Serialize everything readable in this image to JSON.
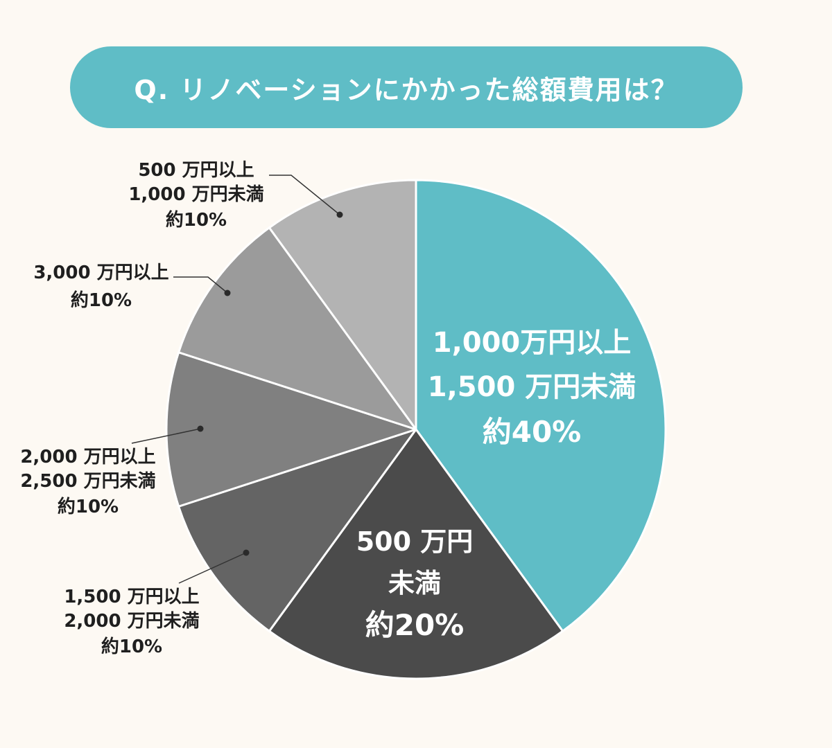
{
  "title": "Q. リノベーションにかかった総額費用は？",
  "chart_data": {
    "type": "pie",
    "title": "Q. リノベーションにかかった総額費用は？",
    "start_angle_deg": 0,
    "direction": "clockwise",
    "slices": [
      {
        "label_lines": [
          "1,000万円以上",
          "1,500 万円未満"
        ],
        "value": 40,
        "pct_text": "約40%",
        "color": "#5fbdc6",
        "label_mode": "inside"
      },
      {
        "label_lines": [
          "500 万円",
          "未満"
        ],
        "value": 20,
        "pct_text": "約20%",
        "color": "#4b4b4b",
        "label_mode": "inside"
      },
      {
        "label_lines": [
          "1,500 万円以上",
          "2,000 万円未満"
        ],
        "value": 10,
        "pct_text": "約10%",
        "color": "#646464",
        "label_mode": "outside"
      },
      {
        "label_lines": [
          "2,000 万円以上",
          "2,500 万円未満"
        ],
        "value": 10,
        "pct_text": "約10%",
        "color": "#808080",
        "label_mode": "outside"
      },
      {
        "label_lines": [
          "3,000 万円以上"
        ],
        "value": 10,
        "pct_text": "約10%",
        "color": "#9b9b9b",
        "label_mode": "outside"
      },
      {
        "label_lines": [
          "500 万円以上",
          "1,000 万円未満"
        ],
        "value": 10,
        "pct_text": "約10%",
        "color": "#b3b3b3",
        "label_mode": "outside"
      }
    ]
  }
}
